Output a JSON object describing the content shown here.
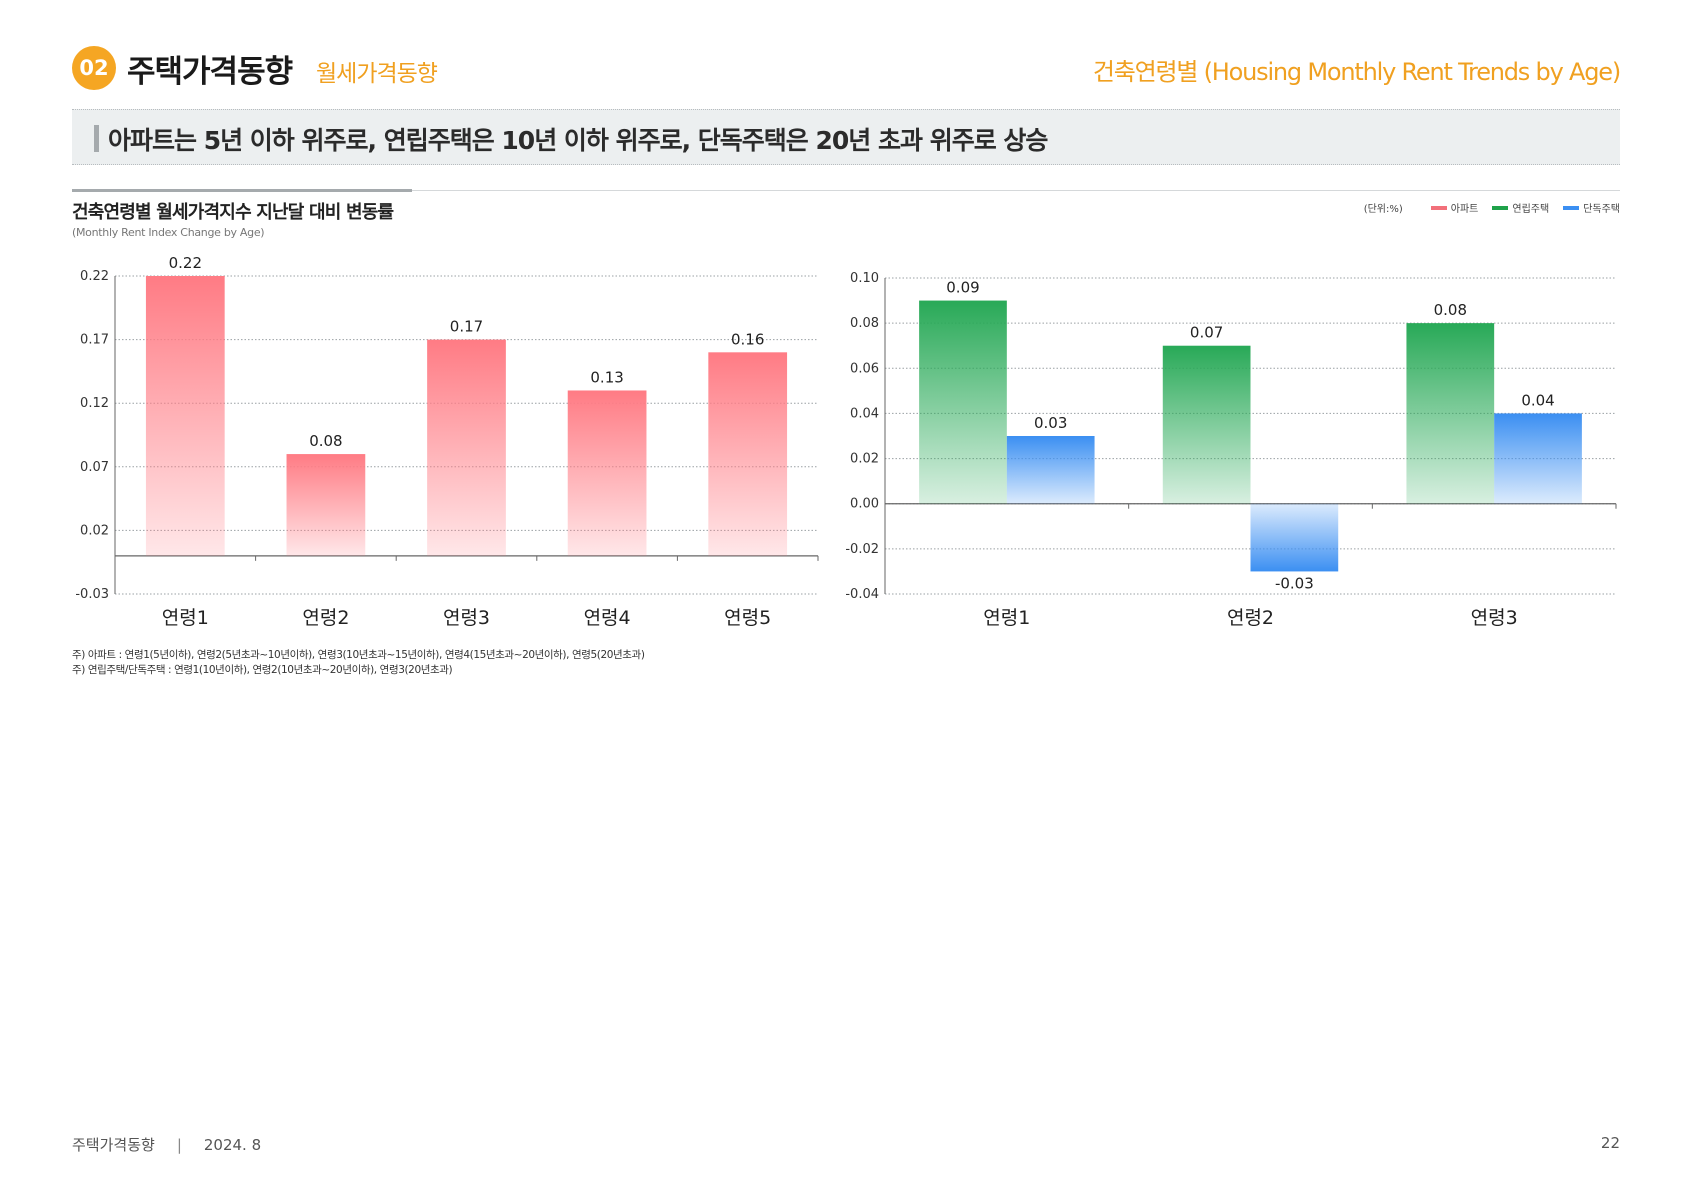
{
  "header": {
    "badge": "02",
    "title": "주택가격동향",
    "subtitle": "월세가격동향",
    "page_heading": "건축연령별 (Housing Monthly Rent Trends by Age)"
  },
  "headline": "아파트는 5년 이하 위주로, 연립주택은 10년 이하 위주로, 단독주택은 20년 초과 위주로 상승",
  "chart_section": {
    "title": "건축연령별 월세가격지수 지난달 대비 변동률",
    "subtitle": "(Monthly Rent Index Change by Age)",
    "legend": {
      "unit": "(단위:%)",
      "items": [
        {
          "label": "아파트",
          "color": "#f2707a"
        },
        {
          "label": "연립주택",
          "color": "#1fa24a"
        },
        {
          "label": "단독주택",
          "color": "#3b8ff2"
        }
      ]
    }
  },
  "chart_data": [
    {
      "type": "bar",
      "title": "아파트",
      "categories": [
        "연령1",
        "연령2",
        "연령3",
        "연령4",
        "연령5"
      ],
      "series": [
        {
          "name": "아파트",
          "values": [
            0.22,
            0.08,
            0.17,
            0.13,
            0.16
          ],
          "color": "#ff7b84"
        }
      ],
      "yticks": [
        0.22,
        0.17,
        0.12,
        0.07,
        0.02,
        -0.03
      ],
      "ytick_labels": [
        "0.22",
        "0.17",
        "0.12",
        "0.07",
        "0.02",
        "-0.03"
      ],
      "ylim": [
        -0.03,
        0.22
      ],
      "grid": true
    },
    {
      "type": "bar",
      "title": "연립주택 / 단독주택",
      "categories": [
        "연령1",
        "연령2",
        "연령3"
      ],
      "series": [
        {
          "name": "연립주택",
          "values": [
            0.09,
            0.07,
            0.08
          ],
          "color": "#28a957"
        },
        {
          "name": "단독주택",
          "values": [
            0.03,
            -0.03,
            0.04
          ],
          "color": "#3b8ff2"
        }
      ],
      "yticks": [
        0.1,
        0.08,
        0.06,
        0.04,
        0.02,
        0.0,
        -0.02,
        -0.04
      ],
      "ytick_labels": [
        "0.10",
        "0.08",
        "0.06",
        "0.04",
        "0.02",
        "0.00",
        "-0.02",
        "-0.04"
      ],
      "ylim": [
        -0.04,
        0.1
      ],
      "grid": true
    }
  ],
  "notes": [
    "주) 아파트 : 연령1(5년이하), 연령2(5년초과~10년이하), 연령3(10년초과~15년이하), 연령4(15년초과~20년이하), 연령5(20년초과)",
    "주) 연립주택/단독주택 : 연령1(10년이하), 연령2(10년초과~20년이하), 연령3(20년초과)"
  ],
  "footer": {
    "label": "주택가격동향",
    "separator": "|",
    "date": "2024. 8",
    "page": "22"
  }
}
